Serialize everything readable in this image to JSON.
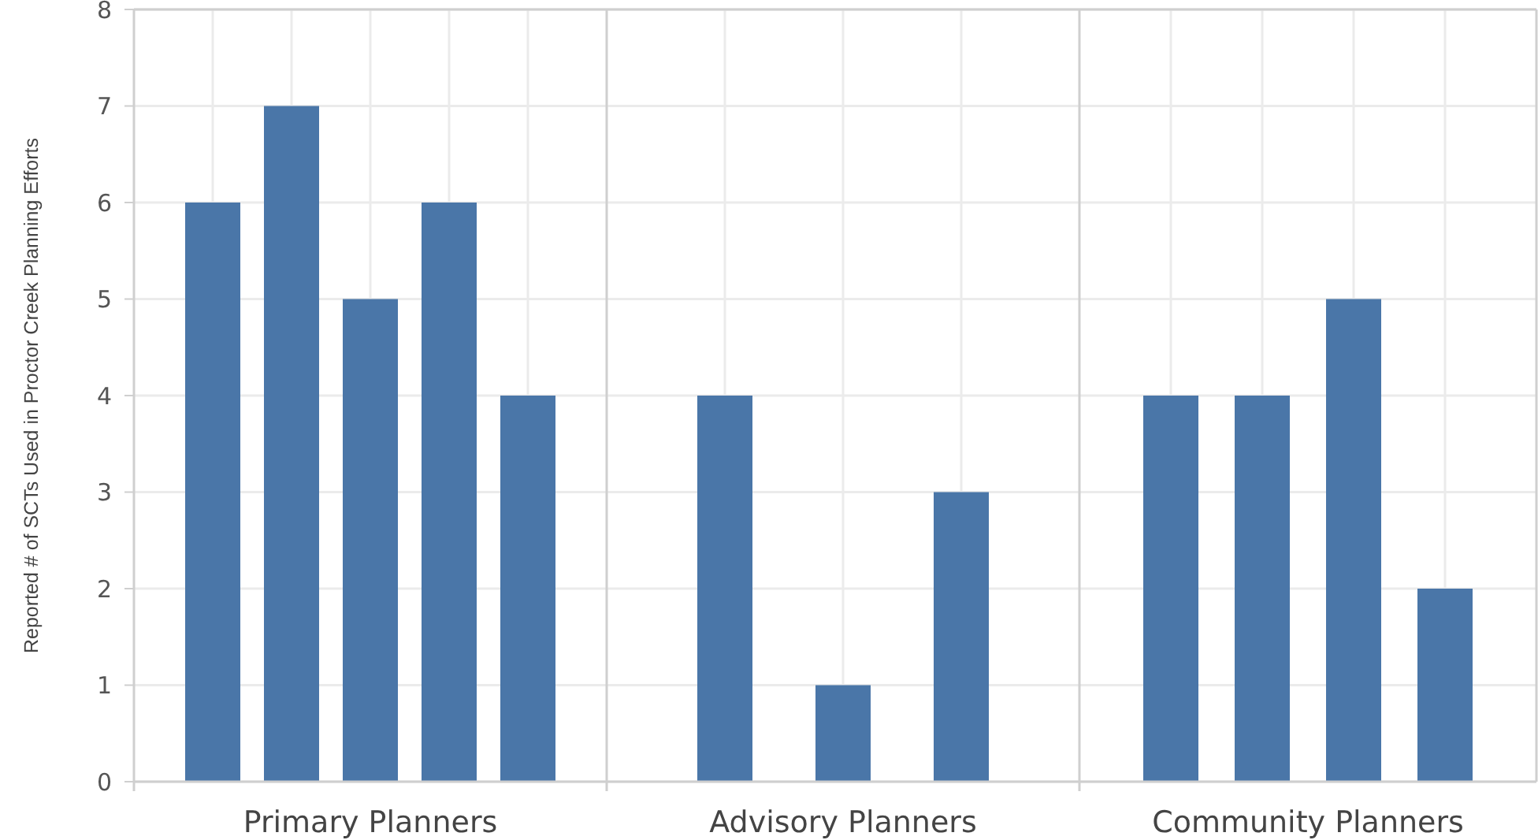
{
  "chart_data": [
    {
      "type": "bar",
      "categories": [
        null,
        null,
        null,
        null,
        null
      ],
      "values": [
        6,
        7,
        5,
        6,
        4
      ],
      "color": "#4a76a8",
      "xlabel": "Primary Planners",
      "ylabel": "Reported # of SCTs Used in Proctor Creek Planning Efforts",
      "ylim": [
        0,
        8
      ],
      "yticks": [
        0,
        1,
        2,
        3,
        4,
        5,
        6,
        7,
        8
      ],
      "grid": true,
      "tick_labels": "y"
    },
    {
      "type": "bar",
      "categories": [
        null,
        null,
        null
      ],
      "values": [
        4,
        1,
        3
      ],
      "color": "#4a76a8",
      "xlabel": "Advisory Planners",
      "ylim": [
        0,
        8
      ],
      "yticks": [
        0,
        1,
        2,
        3,
        4,
        5,
        6,
        7,
        8
      ],
      "grid": true,
      "tick_labels": false
    },
    {
      "type": "bar",
      "categories": [
        null,
        null,
        null,
        null
      ],
      "values": [
        4,
        4,
        5,
        2
      ],
      "color": "#4a76a8",
      "xlabel": "Community Planners",
      "ylim": [
        0,
        8
      ],
      "yticks": [
        0,
        1,
        2,
        3,
        4,
        5,
        6,
        7,
        8
      ],
      "grid": true,
      "tick_labels": false
    }
  ]
}
